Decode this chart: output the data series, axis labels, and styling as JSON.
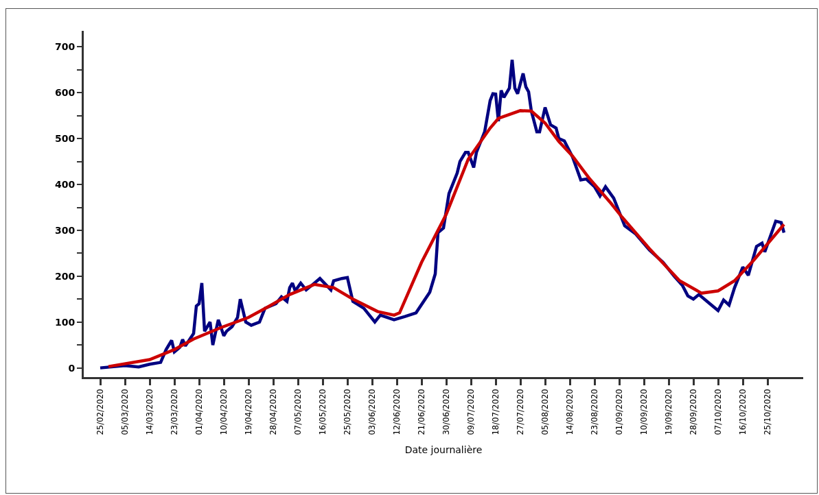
{
  "chart_data": {
    "type": "line",
    "xlabel": "Date journalière",
    "grid": false,
    "marker": "none",
    "line_style": "solid",
    "xlim": [
      "2020-02-19",
      "2020-11-07"
    ],
    "xticks": [
      {
        "value": "2020-02-25",
        "label": "25/02/2020"
      },
      {
        "value": "2020-03-05",
        "label": "05/03/2020"
      },
      {
        "value": "2020-03-14",
        "label": "14/03/2020"
      },
      {
        "value": "2020-03-23",
        "label": "23/03/2020"
      },
      {
        "value": "2020-04-01",
        "label": "01/04/2020"
      },
      {
        "value": "2020-04-10",
        "label": "10/04/2020"
      },
      {
        "value": "2020-04-19",
        "label": "19/04/2020"
      },
      {
        "value": "2020-04-28",
        "label": "28/04/2020"
      },
      {
        "value": "2020-05-07",
        "label": "07/05/2020"
      },
      {
        "value": "2020-05-16",
        "label": "16/05/2020"
      },
      {
        "value": "2020-05-25",
        "label": "25/05/2020"
      },
      {
        "value": "2020-06-03",
        "label": "03/06/2020"
      },
      {
        "value": "2020-06-12",
        "label": "12/06/2020"
      },
      {
        "value": "2020-06-21",
        "label": "21/06/2020"
      },
      {
        "value": "2020-06-30",
        "label": "30/06/2020"
      },
      {
        "value": "2020-07-09",
        "label": "09/07/2020"
      },
      {
        "value": "2020-07-18",
        "label": "18/07/2020"
      },
      {
        "value": "2020-07-27",
        "label": "27/07/2020"
      },
      {
        "value": "2020-08-05",
        "label": "05/08/2020"
      },
      {
        "value": "2020-08-14",
        "label": "14/08/2020"
      },
      {
        "value": "2020-08-23",
        "label": "23/08/2020"
      },
      {
        "value": "2020-09-01",
        "label": "01/09/2020"
      },
      {
        "value": "2020-09-10",
        "label": "10/09/2020"
      },
      {
        "value": "2020-09-19",
        "label": "19/09/2020"
      },
      {
        "value": "2020-09-28",
        "label": "28/09/2020"
      },
      {
        "value": "2020-10-07",
        "label": "07/10/2020"
      },
      {
        "value": "2020-10-16",
        "label": "16/10/2020"
      },
      {
        "value": "2020-10-25",
        "label": "25/10/2020"
      }
    ],
    "ylim": [
      -20,
      735
    ],
    "yticks": [
      0,
      {
        "value": 50,
        "label": null
      },
      100,
      {
        "value": 150,
        "label": null
      },
      200,
      {
        "value": 250,
        "label": null
      },
      300,
      {
        "value": 350,
        "label": null
      },
      400,
      {
        "value": 450,
        "label": null
      },
      500,
      {
        "value": 550,
        "label": null
      },
      600,
      {
        "value": 650,
        "label": null
      },
      700
    ],
    "series": [
      {
        "color": "#000080",
        "x": [
          "2020-02-25",
          "2020-03-05",
          "2020-03-10",
          "2020-03-14",
          "2020-03-18",
          "2020-03-20",
          "2020-03-22",
          "2020-03-23",
          "2020-03-25",
          "2020-03-26",
          "2020-03-27",
          "2020-03-30",
          "2020-03-31",
          "2020-04-01",
          "2020-04-02",
          "2020-04-03",
          "2020-04-05",
          "2020-04-06",
          "2020-04-08",
          "2020-04-10",
          "2020-04-11",
          "2020-04-13",
          "2020-04-15",
          "2020-04-16",
          "2020-04-18",
          "2020-04-20",
          "2020-04-23",
          "2020-04-25",
          "2020-04-29",
          "2020-05-01",
          "2020-05-03",
          "2020-05-04",
          "2020-05-05",
          "2020-05-06",
          "2020-05-08",
          "2020-05-10",
          "2020-05-13",
          "2020-05-15",
          "2020-05-19",
          "2020-05-20",
          "2020-05-23",
          "2020-05-25",
          "2020-05-27",
          "2020-05-31",
          "2020-06-04",
          "2020-06-06",
          "2020-06-11",
          "2020-06-15",
          "2020-06-19",
          "2020-06-24",
          "2020-06-26",
          "2020-06-27",
          "2020-06-29",
          "2020-07-01",
          "2020-07-04",
          "2020-07-05",
          "2020-07-07",
          "2020-07-08",
          "2020-07-10",
          "2020-07-11",
          "2020-07-14",
          "2020-07-16",
          "2020-07-17",
          "2020-07-18",
          "2020-07-19",
          "2020-07-20",
          "2020-07-21",
          "2020-07-23",
          "2020-07-24",
          "2020-07-25",
          "2020-07-26",
          "2020-07-28",
          "2020-07-29",
          "2020-07-30",
          "2020-07-31",
          "2020-08-02",
          "2020-08-03",
          "2020-08-05",
          "2020-08-07",
          "2020-08-09",
          "2020-08-10",
          "2020-08-12",
          "2020-08-15",
          "2020-08-18",
          "2020-08-20",
          "2020-08-23",
          "2020-08-25",
          "2020-08-27",
          "2020-08-30",
          "2020-09-01",
          "2020-09-03",
          "2020-09-07",
          "2020-09-12",
          "2020-09-17",
          "2020-09-21",
          "2020-09-24",
          "2020-09-26",
          "2020-09-28",
          "2020-09-30",
          "2020-10-04",
          "2020-10-07",
          "2020-10-09",
          "2020-10-11",
          "2020-10-13",
          "2020-10-16",
          "2020-10-18",
          "2020-10-21",
          "2020-10-23",
          "2020-10-24",
          "2020-10-28",
          "2020-10-30",
          "2020-10-31"
        ],
        "values": [
          0,
          5,
          2,
          8,
          12,
          40,
          60,
          35,
          45,
          62,
          48,
          75,
          135,
          140,
          185,
          80,
          100,
          50,
          105,
          70,
          80,
          90,
          110,
          150,
          100,
          93,
          100,
          130,
          140,
          155,
          145,
          175,
          185,
          168,
          185,
          170,
          185,
          195,
          170,
          190,
          195,
          197,
          145,
          130,
          100,
          115,
          105,
          112,
          120,
          165,
          205,
          295,
          305,
          380,
          425,
          450,
          470,
          470,
          437,
          470,
          515,
          583,
          598,
          597,
          538,
          605,
          590,
          610,
          672,
          610,
          598,
          642,
          613,
          602,
          560,
          515,
          515,
          568,
          530,
          523,
          500,
          495,
          460,
          410,
          412,
          395,
          375,
          395,
          370,
          340,
          310,
          292,
          257,
          230,
          200,
          180,
          157,
          150,
          160,
          140,
          125,
          148,
          137,
          175,
          220,
          202,
          265,
          272,
          253,
          320,
          317,
          295
        ]
      },
      {
        "color": "#cc0000",
        "x": [
          "2020-02-28",
          "2020-03-14",
          "2020-03-23",
          "2020-03-30",
          "2020-04-09",
          "2020-04-19",
          "2020-04-26",
          "2020-05-04",
          "2020-05-13",
          "2020-05-20",
          "2020-05-27",
          "2020-06-05",
          "2020-06-11",
          "2020-06-13",
          "2020-06-21",
          "2020-06-30",
          "2020-07-08",
          "2020-07-16",
          "2020-07-19",
          "2020-07-27",
          "2020-07-31",
          "2020-08-05",
          "2020-08-10",
          "2020-08-15",
          "2020-08-21",
          "2020-08-29",
          "2020-09-02",
          "2020-09-12",
          "2020-09-23",
          "2020-10-01",
          "2020-10-07",
          "2020-10-13",
          "2020-10-20",
          "2020-10-31"
        ],
        "values": [
          3,
          18,
          40,
          63,
          88,
          110,
          133,
          160,
          182,
          175,
          150,
          123,
          115,
          120,
          230,
          335,
          455,
          523,
          544,
          561,
          560,
          534,
          494,
          462,
          414,
          359,
          329,
          260,
          190,
          163,
          168,
          190,
          235,
          313
        ]
      }
    ]
  }
}
